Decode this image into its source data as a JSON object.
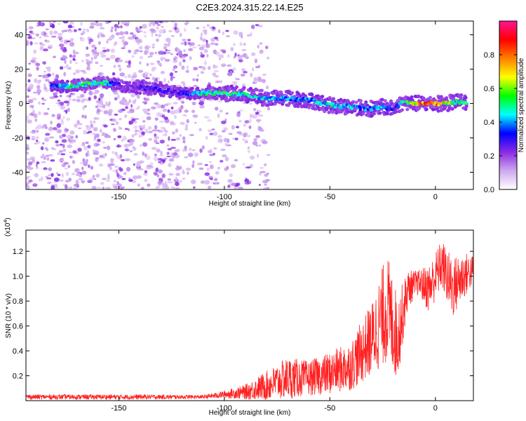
{
  "title": "C2E3.2024.315.22.14.E25",
  "chart_data": [
    {
      "type": "heatmap",
      "xlabel": "Height of straight line (km)",
      "ylabel": "Frequency (Hz)",
      "xlim": [
        -194,
        18
      ],
      "ylim": [
        -50,
        48
      ],
      "x_ticks": [
        -150,
        -100,
        -50,
        0
      ],
      "y_ticks": [
        -40,
        -20,
        0,
        20,
        40
      ],
      "colorbar": {
        "label": "Normalized spectral amplitude",
        "range": [
          0,
          1
        ],
        "ticks": [
          0.0,
          0.2,
          0.4,
          0.6,
          0.8
        ],
        "colormap": [
          "#ffffff",
          "#cfa8ef",
          "#8a2be2",
          "#0000ff",
          "#00ffff",
          "#00ff00",
          "#ffff00",
          "#ff8000",
          "#ff0000",
          "#ff1493"
        ]
      },
      "ridge": [
        {
          "x": -182,
          "freq": 10,
          "amp": 0.35
        },
        {
          "x": -175,
          "freq": 10,
          "amp": 0.5
        },
        {
          "x": -168,
          "freq": 11,
          "amp": 0.55
        },
        {
          "x": -160,
          "freq": 12,
          "amp": 0.55
        },
        {
          "x": -155,
          "freq": 12,
          "amp": 0.45
        },
        {
          "x": -147,
          "freq": 10,
          "amp": 0.2
        },
        {
          "x": -137,
          "freq": 9,
          "amp": 0.3
        },
        {
          "x": -120,
          "freq": 6,
          "amp": 0.3
        },
        {
          "x": -110,
          "freq": 6,
          "amp": 0.5
        },
        {
          "x": -100,
          "freq": 6,
          "amp": 0.55
        },
        {
          "x": -90,
          "freq": 5,
          "amp": 0.5
        },
        {
          "x": -80,
          "freq": 3,
          "amp": 0.45
        },
        {
          "x": -70,
          "freq": 3,
          "amp": 0.4
        },
        {
          "x": -60,
          "freq": 2,
          "amp": 0.4
        },
        {
          "x": -50,
          "freq": -1,
          "amp": 0.5
        },
        {
          "x": -40,
          "freq": -2,
          "amp": 0.45
        },
        {
          "x": -30,
          "freq": -3,
          "amp": 0.4
        },
        {
          "x": -25,
          "freq": -2,
          "amp": 0.45
        },
        {
          "x": -20,
          "freq": -3,
          "amp": 0.3
        },
        {
          "x": -15,
          "freq": 1,
          "amp": 0.5
        },
        {
          "x": -10,
          "freq": 0,
          "amp": 0.7
        },
        {
          "x": -5,
          "freq": 0,
          "amp": 0.85
        },
        {
          "x": 0,
          "freq": 0,
          "amp": 0.85
        },
        {
          "x": 5,
          "freq": 0,
          "amp": 0.7
        },
        {
          "x": 10,
          "freq": 1,
          "amp": 0.5
        },
        {
          "x": 15,
          "freq": 1,
          "amp": 0.6
        }
      ],
      "background_noise": "purple speckle, dense for x < -120, sparse for x > -100"
    },
    {
      "type": "line",
      "xlabel": "Height of straight line (km)",
      "ylabel": "SNR (10 * v/v)",
      "y_scale_label": "(x10",
      "y_scale_exponent": "4",
      "xlim": [
        -194,
        18
      ],
      "ylim": [
        0,
        1.37
      ],
      "x_ticks": [
        -150,
        -100,
        -50,
        0
      ],
      "y_ticks": [
        0.2,
        0.4,
        0.6,
        0.8,
        1.0,
        1.2
      ],
      "series_color": "#ff2020",
      "envelope": [
        {
          "x": -194,
          "base": 0.03,
          "amp": 0.02
        },
        {
          "x": -140,
          "base": 0.03,
          "amp": 0.02
        },
        {
          "x": -110,
          "base": 0.03,
          "amp": 0.015
        },
        {
          "x": -100,
          "base": 0.05,
          "amp": 0.03
        },
        {
          "x": -90,
          "base": 0.07,
          "amp": 0.06
        },
        {
          "x": -80,
          "base": 0.12,
          "amp": 0.12
        },
        {
          "x": -70,
          "base": 0.18,
          "amp": 0.17
        },
        {
          "x": -60,
          "base": 0.18,
          "amp": 0.14
        },
        {
          "x": -50,
          "base": 0.22,
          "amp": 0.17
        },
        {
          "x": -40,
          "base": 0.28,
          "amp": 0.2
        },
        {
          "x": -30,
          "base": 0.5,
          "amp": 0.3
        },
        {
          "x": -23,
          "base": 0.75,
          "amp": 0.45
        },
        {
          "x": -18,
          "base": 0.5,
          "amp": 0.35
        },
        {
          "x": -13,
          "base": 0.9,
          "amp": 0.15
        },
        {
          "x": -8,
          "base": 0.95,
          "amp": 0.1
        },
        {
          "x": -3,
          "base": 0.9,
          "amp": 0.2
        },
        {
          "x": 3,
          "base": 1.1,
          "amp": 0.2
        },
        {
          "x": 8,
          "base": 0.9,
          "amp": 0.25
        },
        {
          "x": 13,
          "base": 1.0,
          "amp": 0.2
        },
        {
          "x": 18,
          "base": 1.05,
          "amp": 0.12
        }
      ]
    }
  ]
}
